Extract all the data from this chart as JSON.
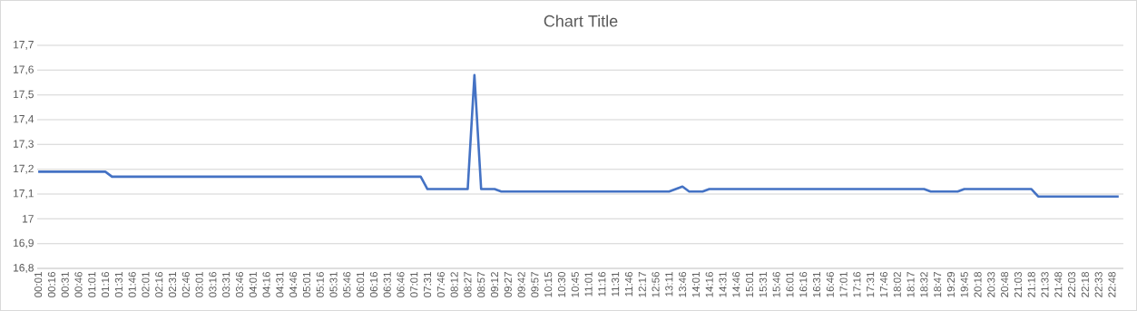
{
  "chart_data": {
    "type": "line",
    "title": "Chart Title",
    "categories": [
      "00:01",
      null,
      "00:16",
      null,
      "00:31",
      null,
      "00:46",
      null,
      "01:01",
      null,
      "01:16",
      null,
      "01:31",
      null,
      "01:46",
      null,
      "02:01",
      null,
      "02:16",
      null,
      "02:31",
      null,
      "02:46",
      null,
      "03:01",
      null,
      "03:16",
      null,
      "03:31",
      null,
      "03:46",
      null,
      "04:01",
      null,
      "04:16",
      null,
      "04:31",
      null,
      "04:46",
      null,
      "05:01",
      null,
      "05:16",
      null,
      "05:31",
      null,
      "05:46",
      null,
      "06:01",
      null,
      "06:16",
      null,
      "06:31",
      null,
      "06:46",
      null,
      "07:01",
      null,
      "07:31",
      null,
      "07:46",
      null,
      "08:12",
      null,
      "08:27",
      null,
      "08:57",
      null,
      "09:12",
      null,
      "09:27",
      null,
      "09:42",
      null,
      "09:57",
      null,
      "10:15",
      null,
      "10:30",
      null,
      "10:45",
      null,
      "11:01",
      null,
      "11:16",
      null,
      "11:31",
      null,
      "11:46",
      null,
      "12:17",
      null,
      "12:56",
      null,
      "13:11",
      null,
      "13:46",
      null,
      "14:01",
      null,
      "14:16",
      null,
      "14:31",
      null,
      "14:46",
      null,
      "15:01",
      null,
      "15:31",
      null,
      "15:46",
      null,
      "16:01",
      null,
      "16:16",
      null,
      "16:31",
      null,
      "16:46",
      null,
      "17:01",
      null,
      "17:16",
      null,
      "17:31",
      null,
      "17:46",
      null,
      "18:02",
      null,
      "18:17",
      null,
      "18:32",
      null,
      "18:47",
      null,
      "19:29",
      null,
      "19:45",
      null,
      "20:18",
      null,
      "20:33",
      null,
      "20:48",
      null,
      "21:03",
      null,
      "21:18",
      null,
      "21:33",
      null,
      "21:48",
      null,
      "22:03",
      null,
      "22:18",
      null,
      "22:33",
      null,
      "22:48",
      null
    ],
    "values": [
      17.19,
      17.19,
      17.19,
      17.19,
      17.19,
      17.19,
      17.19,
      17.19,
      17.19,
      17.19,
      17.19,
      17.17,
      17.17,
      17.17,
      17.17,
      17.17,
      17.17,
      17.17,
      17.17,
      17.17,
      17.17,
      17.17,
      17.17,
      17.17,
      17.17,
      17.17,
      17.17,
      17.17,
      17.17,
      17.17,
      17.17,
      17.17,
      17.17,
      17.17,
      17.17,
      17.17,
      17.17,
      17.17,
      17.17,
      17.17,
      17.17,
      17.17,
      17.17,
      17.17,
      17.17,
      17.17,
      17.17,
      17.17,
      17.17,
      17.17,
      17.17,
      17.17,
      17.17,
      17.17,
      17.17,
      17.17,
      17.17,
      17.17,
      17.12,
      17.12,
      17.12,
      17.12,
      17.12,
      17.12,
      17.12,
      17.58,
      17.12,
      17.12,
      17.12,
      17.11,
      17.11,
      17.11,
      17.11,
      17.11,
      17.11,
      17.11,
      17.11,
      17.11,
      17.11,
      17.11,
      17.11,
      17.11,
      17.11,
      17.11,
      17.11,
      17.11,
      17.11,
      17.11,
      17.11,
      17.11,
      17.11,
      17.11,
      17.11,
      17.11,
      17.11,
      17.12,
      17.13,
      17.11,
      17.11,
      17.11,
      17.12,
      17.12,
      17.12,
      17.12,
      17.12,
      17.12,
      17.12,
      17.12,
      17.12,
      17.12,
      17.12,
      17.12,
      17.12,
      17.12,
      17.12,
      17.12,
      17.12,
      17.12,
      17.12,
      17.12,
      17.12,
      17.12,
      17.12,
      17.12,
      17.12,
      17.12,
      17.12,
      17.12,
      17.12,
      17.12,
      17.12,
      17.12,
      17.12,
      17.11,
      17.11,
      17.11,
      17.11,
      17.11,
      17.12,
      17.12,
      17.12,
      17.12,
      17.12,
      17.12,
      17.12,
      17.12,
      17.12,
      17.12,
      17.12,
      17.09,
      17.09,
      17.09,
      17.09,
      17.09,
      17.09,
      17.09,
      17.09,
      17.09,
      17.09,
      17.09,
      17.09,
      17.09
    ],
    "color": "#4472c4",
    "marker": "none",
    "line_style": "solid",
    "grid": "y",
    "ylim": [
      16.8,
      17.7
    ],
    "yticks": [
      {
        "value": 16.8,
        "label": "16,8"
      },
      {
        "value": 16.9,
        "label": "16,9"
      },
      17,
      {
        "value": 17.1,
        "label": "17,1"
      },
      {
        "value": 17.2,
        "label": "17,2"
      },
      {
        "value": 17.3,
        "label": "17,3"
      },
      {
        "value": 17.4,
        "label": "17,4"
      },
      {
        "value": 17.5,
        "label": "17,5"
      },
      {
        "value": 17.6,
        "label": "17,6"
      },
      {
        "value": 17.7,
        "label": "17,7"
      }
    ]
  }
}
